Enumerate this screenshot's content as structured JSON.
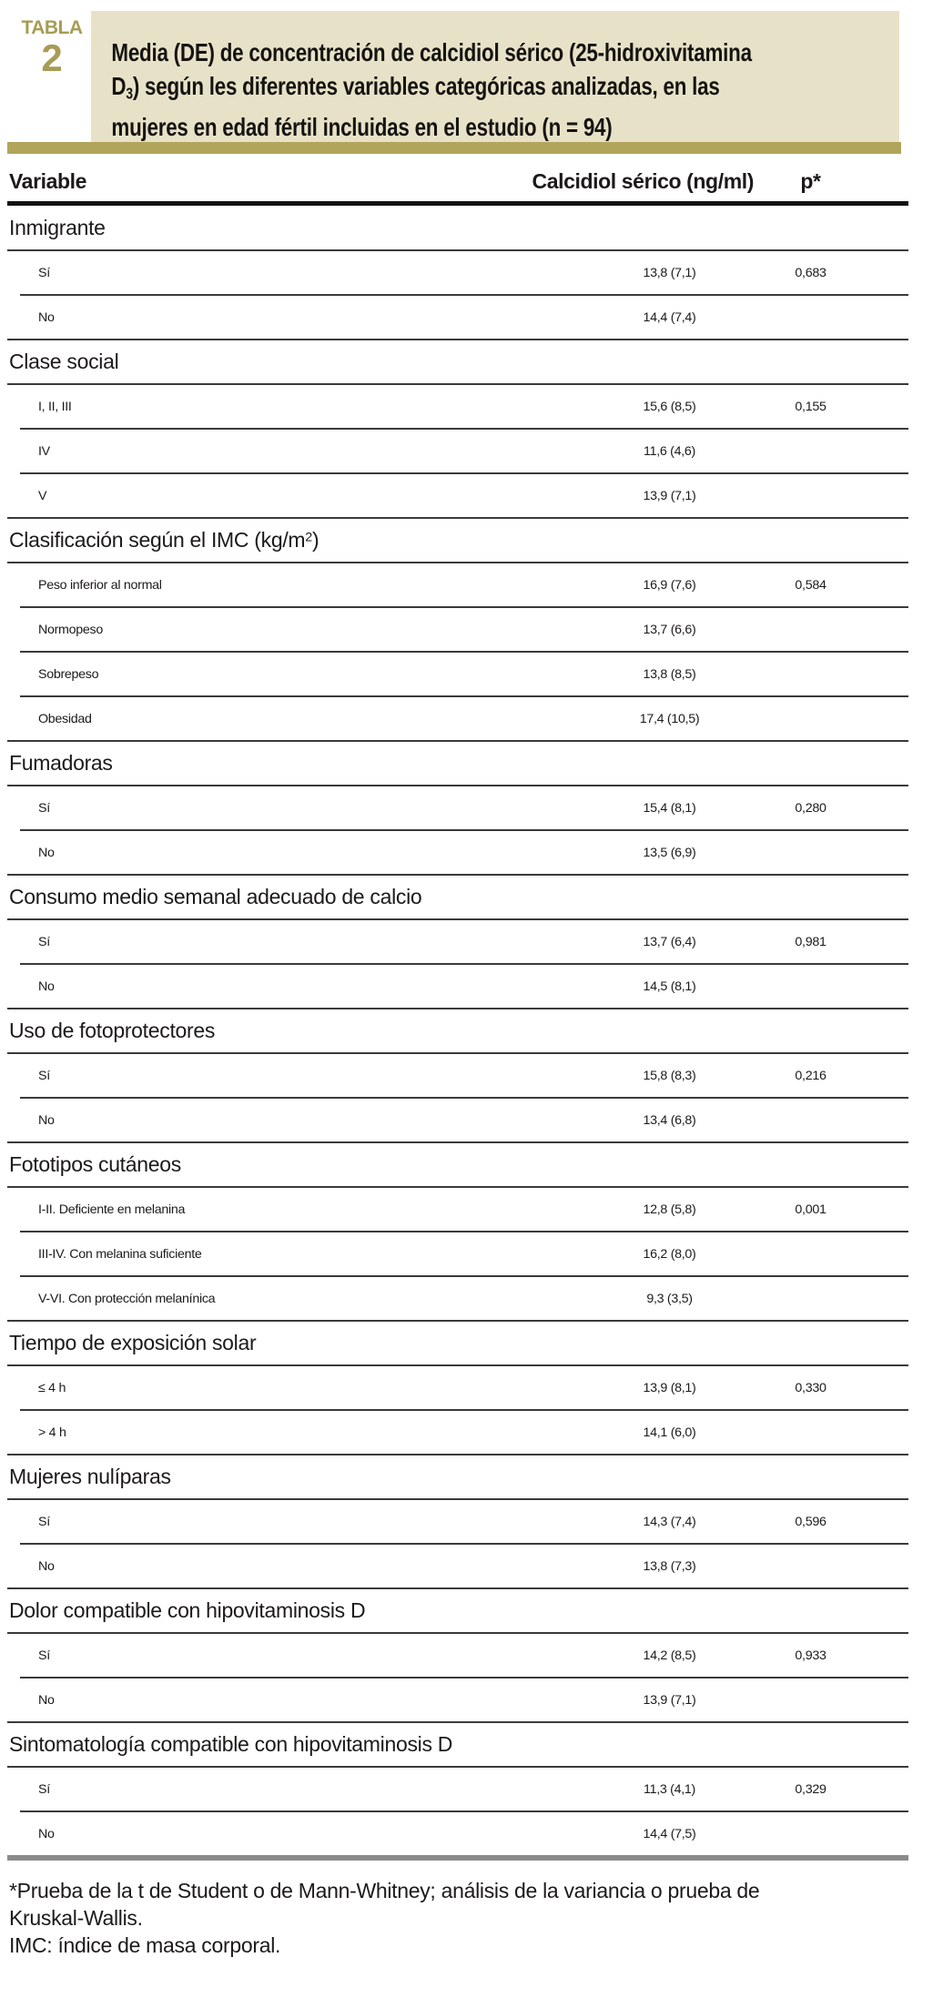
{
  "table_label": {
    "word": "TABLA",
    "number": "2"
  },
  "title": {
    "line1": "Media (DE) de concentración de calcidiol sérico (25-hidroxivitamina",
    "line2_pre": "D",
    "line2_sub": "3",
    "line2_post": ") según les diferentes variables categóricas analizadas, en las",
    "line3": "mujeres en edad fértil incluidas en el estudio (n = 94)"
  },
  "columns": {
    "variable": "Variable",
    "value": "Calcidiol sérico (ng/ml)",
    "p": "p*"
  },
  "sections": [
    {
      "category": "Inmigrante",
      "rows": [
        {
          "label": "Sí",
          "value": "13,8 (7,1)",
          "p": "0,683"
        },
        {
          "label": "No",
          "value": "14,4 (7,4)",
          "p": ""
        }
      ]
    },
    {
      "category": "Clase social",
      "rows": [
        {
          "label": "I, II, III",
          "value": "15,6 (8,5)",
          "p": "0,155"
        },
        {
          "label": "IV",
          "value": "11,6 (4,6)",
          "p": ""
        },
        {
          "label": "V",
          "value": "13,9 (7,1)",
          "p": ""
        }
      ]
    },
    {
      "category_pre": "Clasificación según el IMC (kg/m",
      "category_sup": "2",
      "category_post": ")",
      "rows": [
        {
          "label": "Peso inferior al normal",
          "value": "16,9 (7,6)",
          "p": "0,584"
        },
        {
          "label": "Normopeso",
          "value": "13,7 (6,6)",
          "p": ""
        },
        {
          "label": "Sobrepeso",
          "value": "13,8 (8,5)",
          "p": ""
        },
        {
          "label": "Obesidad",
          "value": "17,4 (10,5)",
          "p": ""
        }
      ]
    },
    {
      "category": "Fumadoras",
      "rows": [
        {
          "label": "Sí",
          "value": "15,4 (8,1)",
          "p": "0,280"
        },
        {
          "label": "No",
          "value": "13,5 (6,9)",
          "p": ""
        }
      ]
    },
    {
      "category": "Consumo medio semanal adecuado de calcio",
      "rows": [
        {
          "label": "Sí",
          "value": "13,7 (6,4)",
          "p": "0,981"
        },
        {
          "label": "No",
          "value": "14,5 (8,1)",
          "p": ""
        }
      ]
    },
    {
      "category": "Uso de fotoprotectores",
      "rows": [
        {
          "label": "Sí",
          "value": "15,8 (8,3)",
          "p": "0,216"
        },
        {
          "label": "No",
          "value": "13,4 (6,8)",
          "p": ""
        }
      ]
    },
    {
      "category": "Fototipos cutáneos",
      "rows": [
        {
          "label": "I-II. Deficiente en melanina",
          "value": "12,8 (5,8)",
          "p": "0,001"
        },
        {
          "label": "III-IV. Con melanina suficiente",
          "value": "16,2 (8,0)",
          "p": ""
        },
        {
          "label": "V-VI. Con protección melanínica",
          "value": "9,3 (3,5)",
          "p": ""
        }
      ]
    },
    {
      "category": "Tiempo de exposición solar",
      "rows": [
        {
          "label": "≤ 4 h",
          "value": "13,9 (8,1)",
          "p": "0,330"
        },
        {
          "label": "> 4 h",
          "value": "14,1 (6,0)",
          "p": ""
        }
      ]
    },
    {
      "category": "Mujeres nulíparas",
      "rows": [
        {
          "label": "Sí",
          "value": "14,3 (7,4)",
          "p": "0,596"
        },
        {
          "label": "No",
          "value": "13,8 (7,3)",
          "p": ""
        }
      ]
    },
    {
      "category": "Dolor compatible con hipovitaminosis D",
      "rows": [
        {
          "label": "Sí",
          "value": "14,2 (8,5)",
          "p": "0,933"
        },
        {
          "label": "No",
          "value": "13,9 (7,1)",
          "p": ""
        }
      ]
    },
    {
      "category": "Sintomatología compatible con hipovitaminosis D",
      "rows": [
        {
          "label": "Sí",
          "value": "11,3 (4,1)",
          "p": "0,329"
        },
        {
          "label": "No",
          "value": "14,4 (7,5)",
          "p": ""
        }
      ]
    }
  ],
  "footnotes": {
    "note1": "*Prueba de la t de Student o de Mann-Whitney; análisis de la variancia o prueba de Kruskal-Wallis.",
    "note2": "IMC: índice de masa corporal."
  },
  "colors": {
    "accent_olive_text": "#a79c55",
    "accent_olive_bar": "#b1a55c",
    "title_background": "#e7e2c7",
    "end_bar_gray": "#8b8b8b",
    "body_text": "#1c1a19"
  }
}
